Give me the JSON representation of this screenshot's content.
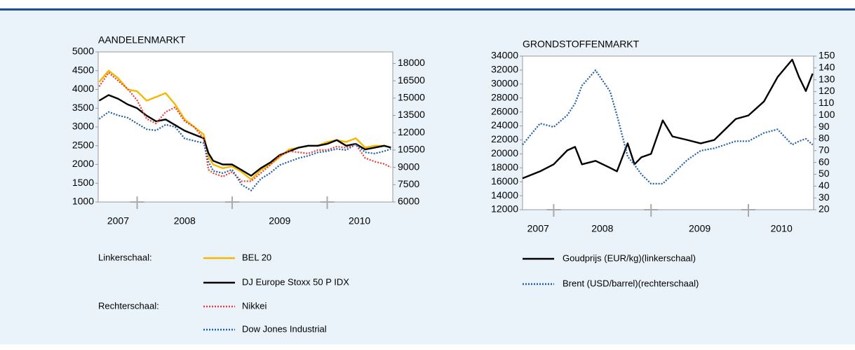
{
  "chart_data": [
    {
      "type": "line",
      "title": "AANDELENMARKT",
      "left_axis_label": "Linkerschaal:",
      "right_axis_label": "Rechterschaal:",
      "x": [
        2007.6,
        2007.7,
        2007.8,
        2007.9,
        2008.0,
        2008.1,
        2008.2,
        2008.3,
        2008.4,
        2008.5,
        2008.6,
        2008.7,
        2008.75,
        2008.8,
        2008.9,
        2009.0,
        2009.1,
        2009.2,
        2009.3,
        2009.4,
        2009.5,
        2009.6,
        2009.7,
        2009.8,
        2009.9,
        2010.0,
        2010.1,
        2010.2,
        2010.3,
        2010.4,
        2010.5,
        2010.6,
        2010.67
      ],
      "xlim": [
        2007.59,
        2010.69
      ],
      "xticks": [
        {
          "value": 2007.8,
          "label": "2007"
        },
        {
          "value": 2008.5,
          "label": "2008"
        },
        {
          "value": 2009.5,
          "label": "2009"
        },
        {
          "value": 2010.34,
          "label": "2010"
        }
      ],
      "xminor": [
        2008,
        2009,
        2010
      ],
      "ylim": [
        1000,
        5000
      ],
      "yticks": [
        1000,
        1500,
        2000,
        2500,
        3000,
        3500,
        4000,
        4500,
        5000
      ],
      "y2lim": [
        6000,
        19000
      ],
      "y2ticks": [
        6000,
        7500,
        9000,
        10500,
        12000,
        13500,
        15000,
        16500,
        18000
      ],
      "series": [
        {
          "name": "BEL 20",
          "color": "#f5b800",
          "dash": false,
          "axis": "y",
          "values": [
            4200,
            4500,
            4300,
            4000,
            3950,
            3700,
            3800,
            3900,
            3600,
            3200,
            3000,
            2800,
            2200,
            2000,
            1900,
            1950,
            1800,
            1600,
            1850,
            2000,
            2200,
            2400,
            2450,
            2500,
            2500,
            2600,
            2650,
            2600,
            2700,
            2450,
            2500,
            2500,
            2450
          ]
        },
        {
          "name": "DJ Europe Stoxx 50 P IDX",
          "color": "#000000",
          "dash": false,
          "axis": "y",
          "values": [
            3700,
            3850,
            3750,
            3600,
            3500,
            3300,
            3150,
            3200,
            3050,
            2900,
            2800,
            2700,
            2300,
            2100,
            2000,
            2000,
            1850,
            1700,
            1900,
            2050,
            2250,
            2350,
            2450,
            2500,
            2500,
            2550,
            2650,
            2500,
            2550,
            2400,
            2450,
            2500,
            2450
          ]
        },
        {
          "name": "Nikkei",
          "color": "#e8403a",
          "dash": true,
          "axis": "y2",
          "values": [
            16000,
            17200,
            16500,
            15800,
            14800,
            13200,
            12800,
            13800,
            14200,
            13000,
            12500,
            11500,
            8800,
            8500,
            8200,
            8600,
            7800,
            7800,
            8500,
            9200,
            10000,
            10400,
            10300,
            10200,
            10500,
            10500,
            10800,
            10700,
            11000,
            9800,
            9500,
            9300,
            9000
          ]
        },
        {
          "name": "Dow Jones Industrial",
          "color": "#1f5fa8",
          "dash": true,
          "axis": "y2",
          "values": [
            13200,
            13800,
            13500,
            13300,
            12800,
            12300,
            12200,
            12700,
            12500,
            11500,
            11300,
            11100,
            9500,
            8700,
            8500,
            8800,
            7500,
            7000,
            8000,
            8500,
            9200,
            9500,
            9800,
            10000,
            10300,
            10400,
            10600,
            10500,
            11000,
            10300,
            10200,
            10400,
            10600
          ]
        }
      ]
    },
    {
      "type": "line",
      "title": "GRONDSTOFFENMARKT",
      "x": [
        2007.68,
        2007.86,
        2008.0,
        2008.14,
        2008.22,
        2008.29,
        2008.43,
        2008.58,
        2008.65,
        2008.76,
        2008.83,
        2008.9,
        2009.0,
        2009.12,
        2009.22,
        2009.37,
        2009.51,
        2009.65,
        2009.87,
        2010.0,
        2010.16,
        2010.3,
        2010.45,
        2010.52,
        2010.59,
        2010.66
      ],
      "xlim": [
        2007.68,
        2010.67
      ],
      "xticks": [
        {
          "value": 2007.84,
          "label": "2007"
        },
        {
          "value": 2008.5,
          "label": "2008"
        },
        {
          "value": 2009.5,
          "label": "2009"
        },
        {
          "value": 2010.34,
          "label": "2010"
        }
      ],
      "xminor": [
        2008,
        2009,
        2010
      ],
      "ylim": [
        12000,
        34000
      ],
      "yticks": [
        12000,
        14000,
        16000,
        18000,
        20000,
        22000,
        24000,
        26000,
        28000,
        30000,
        32000,
        34000
      ],
      "y2lim": [
        20,
        150
      ],
      "y2ticks": [
        20,
        30,
        40,
        50,
        60,
        70,
        80,
        90,
        100,
        110,
        120,
        130,
        140,
        150
      ],
      "series": [
        {
          "name": "Goudprijs (EUR/kg)(linkerschaal)",
          "color": "#000000",
          "dash": false,
          "axis": "y",
          "values": [
            16500,
            17500,
            18500,
            20500,
            21000,
            18500,
            19000,
            18000,
            17500,
            21500,
            18500,
            19500,
            20000,
            24800,
            22500,
            22000,
            21500,
            22000,
            25000,
            25500,
            27500,
            31000,
            33500,
            31000,
            29000,
            31500
          ]
        },
        {
          "name": "Brent (USD/barrel)(rechterschaal)",
          "color": "#1f5fa8",
          "dash": true,
          "axis": "y2",
          "values": [
            75,
            93,
            90,
            100,
            110,
            125,
            138,
            120,
            100,
            65,
            58,
            50,
            42,
            42,
            50,
            62,
            70,
            72,
            78,
            78,
            85,
            88,
            75,
            78,
            80,
            75
          ]
        }
      ]
    }
  ]
}
